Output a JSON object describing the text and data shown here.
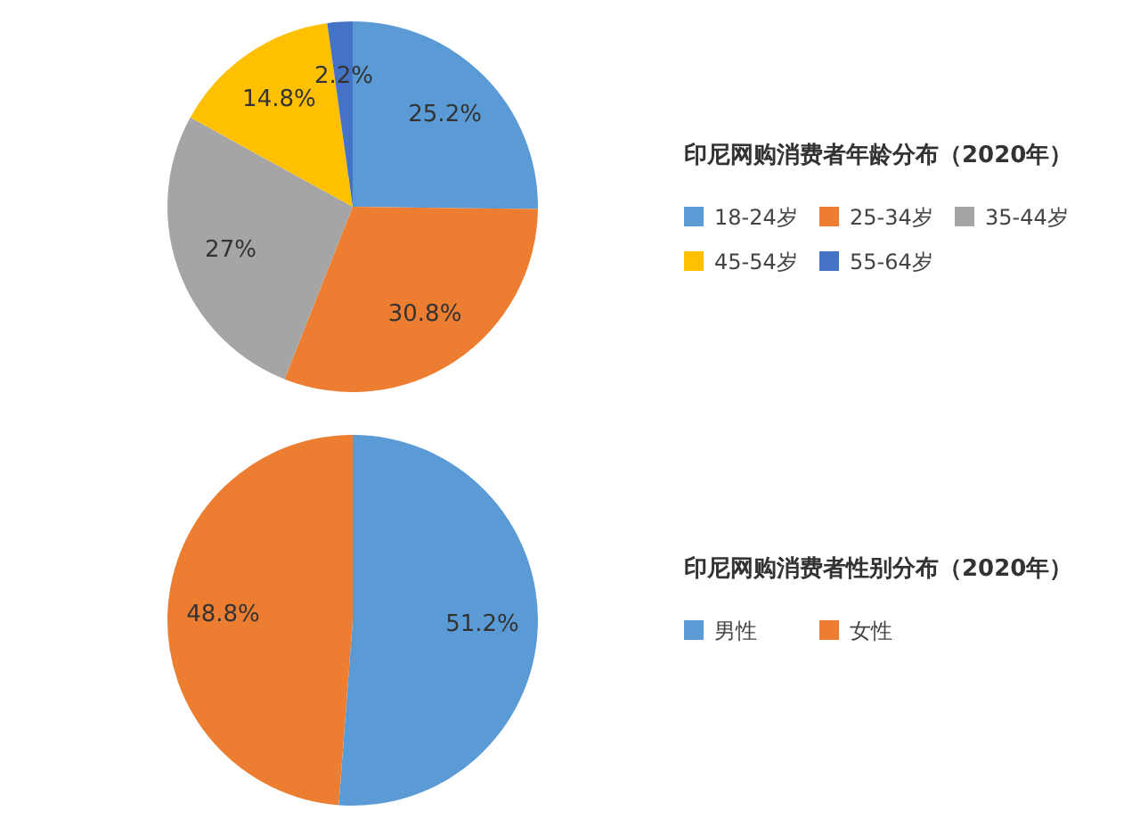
{
  "chart_data": [
    {
      "type": "pie",
      "title": "印尼网购消费者年龄分布（2020年）",
      "categories": [
        "18-24岁",
        "25-34岁",
        "35-44岁",
        "45-54岁",
        "55-64岁"
      ],
      "values": [
        25.2,
        30.8,
        27,
        14.8,
        2.2
      ],
      "colors": [
        "#5b9bd5",
        "#ed7d31",
        "#a5a5a5",
        "#ffc000",
        "#4472c4"
      ],
      "value_labels": [
        "25.2%",
        "30.8%",
        "27%",
        "14.8%",
        "2.2%"
      ],
      "legend": "right"
    },
    {
      "type": "pie",
      "title": "印尼网购消费者性别分布（2020年）",
      "categories": [
        "男性",
        "女性"
      ],
      "values": [
        51.2,
        48.8
      ],
      "colors": [
        "#5b9bd5",
        "#ed7d31"
      ],
      "value_labels": [
        "51.2%",
        "48.8%"
      ],
      "legend": "right"
    }
  ]
}
